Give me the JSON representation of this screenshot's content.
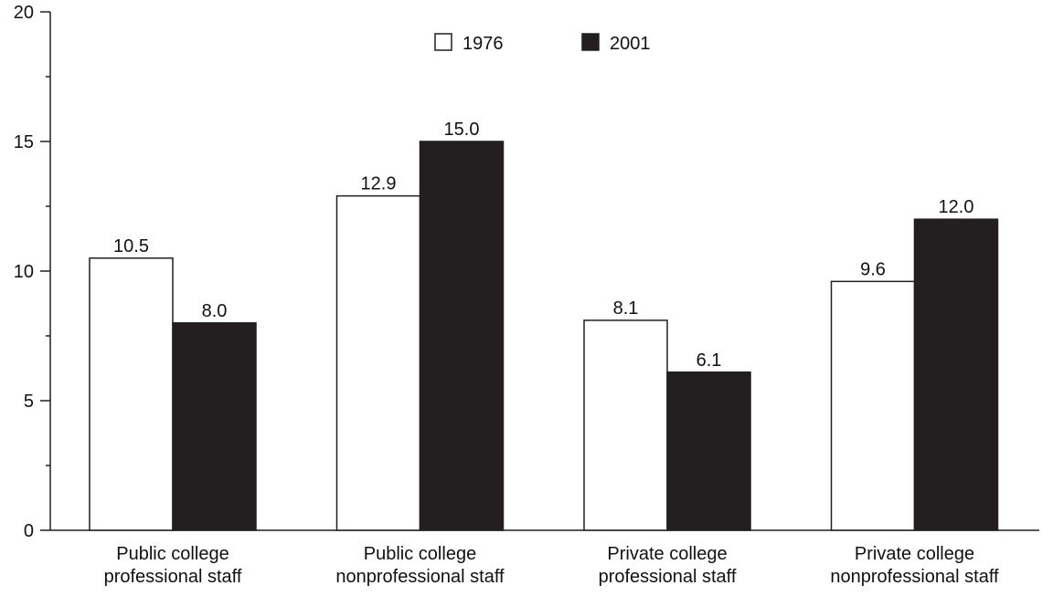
{
  "chart_data": {
    "type": "bar",
    "categories": [
      [
        "Public college",
        "professional staff"
      ],
      [
        "Public college",
        "nonprofessional staff"
      ],
      [
        "Private college",
        "professional staff"
      ],
      [
        "Private college",
        "nonprofessional staff"
      ]
    ],
    "series": [
      {
        "name": "1976",
        "values": [
          10.5,
          12.9,
          8.1,
          9.6
        ],
        "color": "#ffffff",
        "value_labels": [
          "10.5",
          "12.9",
          "8.1",
          "9.6"
        ]
      },
      {
        "name": "2001",
        "values": [
          8.0,
          15.0,
          6.1,
          12.0
        ],
        "color": "#231f20",
        "value_labels": [
          "8.0",
          "15.0",
          "6.1",
          "12.0"
        ]
      }
    ],
    "title": "",
    "xlabel": "",
    "ylabel": "",
    "ylim": [
      0,
      20
    ],
    "y_major_ticks": [
      0,
      5,
      10,
      15,
      20
    ],
    "y_minor_ticks": [
      2.5,
      7.5,
      12.5,
      17.5
    ],
    "grid": false,
    "legend_position": "top-center"
  }
}
